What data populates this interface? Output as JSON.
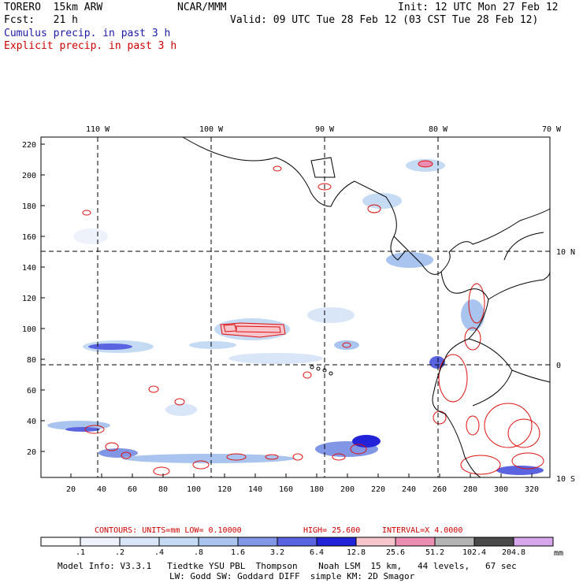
{
  "header": {
    "model": "TORERO  15km ARW",
    "org": "NCAR/MMM",
    "init": "Init: 12 UTC Mon 27 Feb 12",
    "fcst": "Fcst:   21 h",
    "valid": "Valid: 09 UTC Tue 28 Feb 12 (03 CST Tue 28 Feb 12)",
    "field1": "Cumulus precip. in past 3 h",
    "field2": "Explicit precip. in past 3 h"
  },
  "map": {
    "top_lon_labels": [
      "110 W",
      "100 W",
      "90 W",
      "80 W",
      "70 W"
    ],
    "right_lat_labels": [
      "10 N",
      "0",
      "10 S"
    ],
    "y_ticks": [
      "220",
      "200",
      "180",
      "160",
      "140",
      "120",
      "100",
      "80",
      "60",
      "40",
      "20"
    ],
    "x_ticks": [
      "20",
      "40",
      "60",
      "80",
      "100",
      "120",
      "140",
      "160",
      "180",
      "200",
      "220",
      "240",
      "260",
      "280",
      "300",
      "320"
    ]
  },
  "contours": {
    "label": "CONTOURS:  UNITS=mm  LOW= 0.10000",
    "high": "HIGH=  25.600",
    "interval": "INTERVAL=X  4.0000"
  },
  "colorbar": {
    "labels": [
      ".1",
      ".2",
      ".4",
      ".8",
      "1.6",
      "3.2",
      "6.4",
      "12.8",
      "25.6",
      "51.2",
      "102.4",
      "204.8"
    ],
    "units": "mm",
    "colors": [
      "#ffffff",
      "#eef3fb",
      "#d9e6f7",
      "#c5dbf3",
      "#a9c4ee",
      "#8296e6",
      "#5a63e0",
      "#2222d8",
      "#f6c6cc",
      "#ec8eb4",
      "#b4b4b4",
      "#4a4a4a",
      "#d7a6ec"
    ]
  },
  "footer": {
    "line1": "Model Info: V3.3.1   Tiedtke YSU PBL  Thompson    Noah LSM  15 km,   44 levels,   67 sec",
    "line2": "LW: Godd SW: Goddard DIFF  simple KM: 2D Smagor"
  }
}
